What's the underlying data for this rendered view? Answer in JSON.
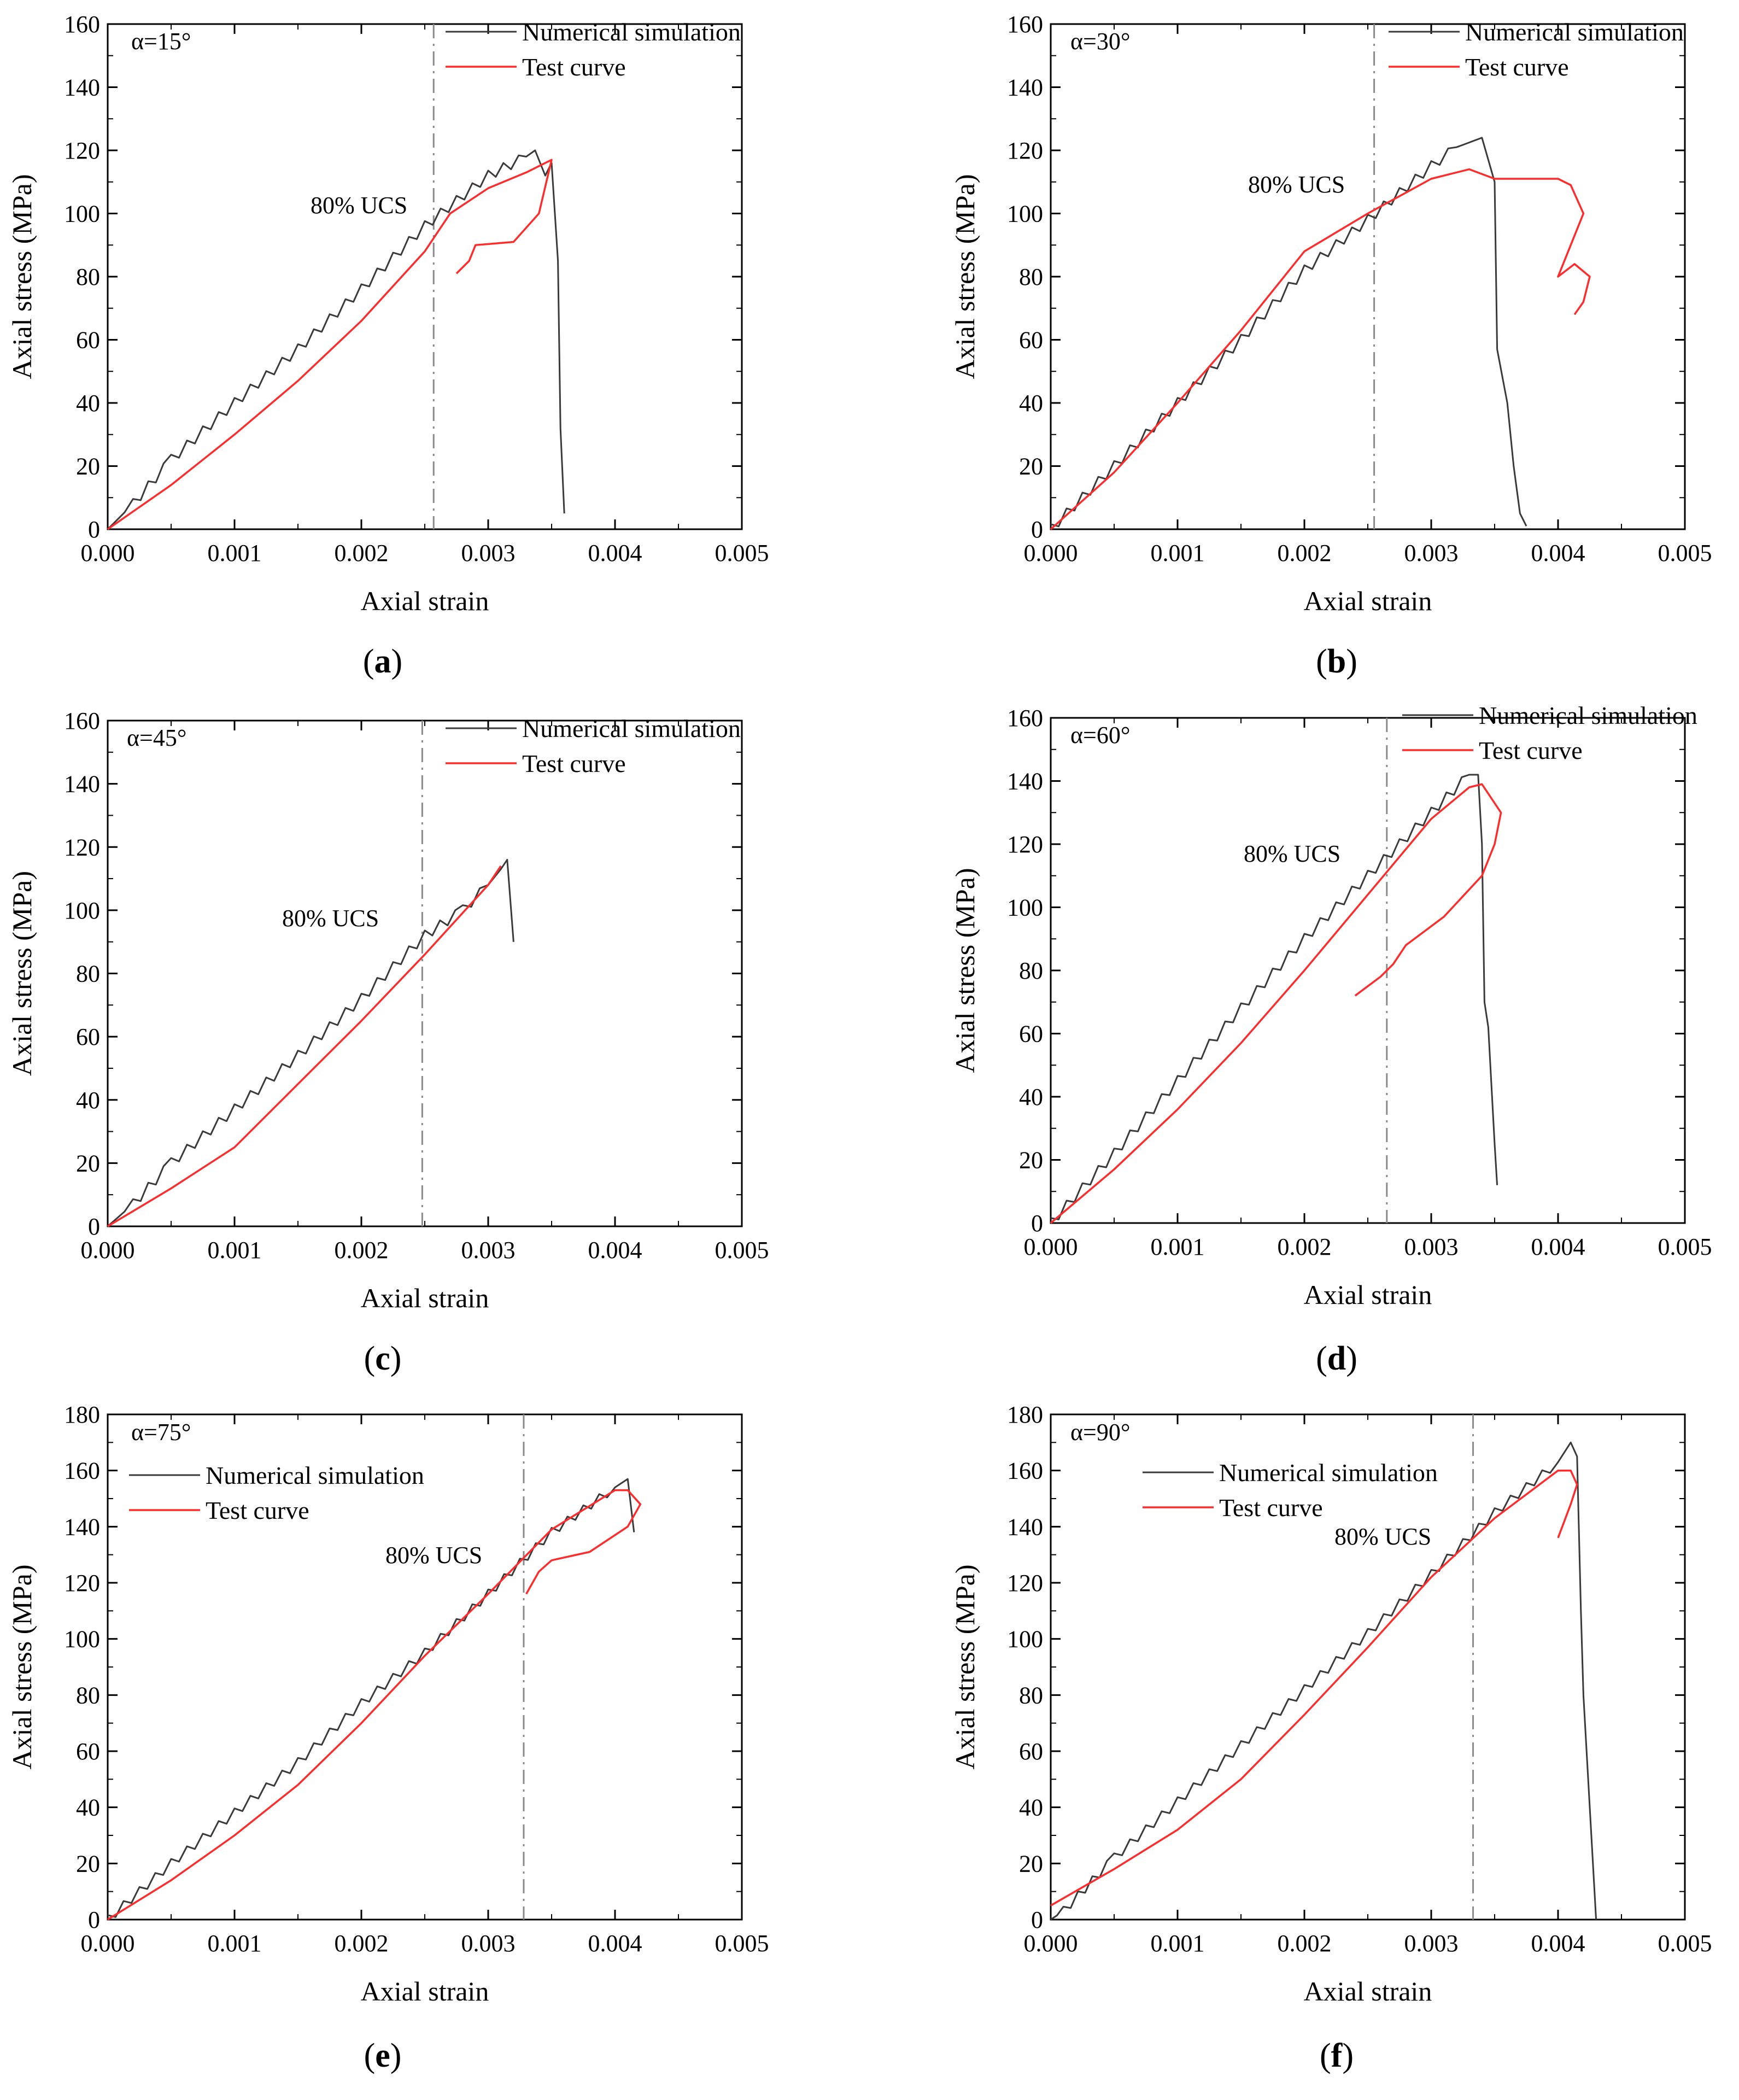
{
  "legend": {
    "simulation": "Numerical simulation",
    "test": "Test curve"
  },
  "colors": {
    "simulation": "#3a3a3a",
    "test": "#ff2a2a",
    "ucs_line": "#8a8a8a",
    "axes": "#000000"
  },
  "ucs_label": "80% UCS",
  "axis_titles": {
    "x": "Axial strain",
    "y": "Axial stress (MPa)"
  },
  "chart_data": [
    {
      "type": "line",
      "panel": "a",
      "angle": "α=15°",
      "xlim": [
        0,
        0.005
      ],
      "ylim": [
        0,
        160
      ],
      "x_ticks": [
        "0.000",
        "0.001",
        "0.002",
        "0.003",
        "0.004",
        "0.005"
      ],
      "y_ticks": [
        "0",
        "20",
        "40",
        "60",
        "80",
        "100",
        "120",
        "140",
        "160"
      ],
      "ucs_strain": 0.00257,
      "series": [
        {
          "name": "Numerical simulation",
          "points": [
            [
              0,
              0
            ],
            [
              0.0002,
              8
            ],
            [
              0.0005,
              22
            ],
            [
              0.001,
              40
            ],
            [
              0.0015,
              57
            ],
            [
              0.002,
              76
            ],
            [
              0.0025,
              96
            ],
            [
              0.003,
              112
            ],
            [
              0.0033,
              118
            ],
            [
              0.00337,
              120
            ],
            [
              0.00345,
              112
            ],
            [
              0.0035,
              116
            ],
            [
              0.00355,
              85
            ],
            [
              0.00357,
              32
            ],
            [
              0.0036,
              5
            ]
          ]
        },
        {
          "name": "Test curve",
          "points": [
            [
              0,
              0
            ],
            [
              0.0005,
              14
            ],
            [
              0.001,
              30
            ],
            [
              0.0015,
              47
            ],
            [
              0.002,
              66
            ],
            [
              0.0025,
              88
            ],
            [
              0.0027,
              100
            ],
            [
              0.003,
              108
            ],
            [
              0.0033,
              113
            ],
            [
              0.0035,
              117
            ],
            [
              0.0034,
              100
            ],
            [
              0.0032,
              91
            ],
            [
              0.0029,
              90
            ],
            [
              0.00285,
              85
            ],
            [
              0.00275,
              81
            ]
          ]
        }
      ]
    },
    {
      "type": "line",
      "panel": "b",
      "angle": "α=30°",
      "xlim": [
        0,
        0.005
      ],
      "ylim": [
        0,
        160
      ],
      "x_ticks": [
        "0.000",
        "0.001",
        "0.002",
        "0.003",
        "0.004",
        "0.005"
      ],
      "y_ticks": [
        "0",
        "20",
        "40",
        "60",
        "80",
        "100",
        "120",
        "140",
        "160"
      ],
      "ucs_strain": 0.00255,
      "series": [
        {
          "name": "Numerical simulation",
          "points": [
            [
              0,
              0
            ],
            [
              0.0005,
              20
            ],
            [
              0.001,
              40
            ],
            [
              0.0015,
              60
            ],
            [
              0.002,
              82
            ],
            [
              0.0025,
              98
            ],
            [
              0.003,
              115
            ],
            [
              0.0032,
              121
            ],
            [
              0.0034,
              124
            ],
            [
              0.0035,
              110
            ],
            [
              0.00352,
              57
            ],
            [
              0.0036,
              40
            ],
            [
              0.00365,
              20
            ],
            [
              0.0037,
              5
            ],
            [
              0.00375,
              1
            ]
          ]
        },
        {
          "name": "Test curve",
          "points": [
            [
              0,
              0
            ],
            [
              0.0005,
              18
            ],
            [
              0.001,
              40
            ],
            [
              0.0015,
              63
            ],
            [
              0.002,
              88
            ],
            [
              0.0025,
              100
            ],
            [
              0.003,
              111
            ],
            [
              0.0033,
              114
            ],
            [
              0.0035,
              111
            ],
            [
              0.004,
              111
            ],
            [
              0.0041,
              109
            ],
            [
              0.0042,
              100
            ],
            [
              0.0041,
              90
            ],
            [
              0.004,
              80
            ],
            [
              0.00413,
              84
            ],
            [
              0.00425,
              80
            ],
            [
              0.0042,
              72
            ],
            [
              0.00413,
              68
            ]
          ]
        }
      ]
    },
    {
      "type": "line",
      "panel": "c",
      "angle": "α=45°",
      "xlim": [
        0,
        0.005
      ],
      "ylim": [
        0,
        160
      ],
      "x_ticks": [
        "0.000",
        "0.001",
        "0.002",
        "0.003",
        "0.004",
        "0.005"
      ],
      "y_ticks": [
        "0",
        "20",
        "40",
        "60",
        "80",
        "100",
        "120",
        "140",
        "160"
      ],
      "ucs_strain": 0.00248,
      "series": [
        {
          "name": "Numerical simulation",
          "points": [
            [
              0,
              0
            ],
            [
              0.0002,
              7
            ],
            [
              0.0005,
              20
            ],
            [
              0.001,
              37
            ],
            [
              0.0015,
              54
            ],
            [
              0.002,
              72
            ],
            [
              0.0025,
              92
            ],
            [
              0.0028,
              100
            ],
            [
              0.003,
              108
            ],
            [
              0.0031,
              113
            ],
            [
              0.00315,
              116
            ],
            [
              0.0032,
              90
            ]
          ]
        },
        {
          "name": "Test curve",
          "points": [
            [
              0,
              0
            ],
            [
              0.0005,
              12
            ],
            [
              0.001,
              25
            ],
            [
              0.0015,
              45
            ],
            [
              0.002,
              65
            ],
            [
              0.0025,
              86
            ],
            [
              0.003,
              108
            ],
            [
              0.0031,
              114
            ]
          ]
        }
      ]
    },
    {
      "type": "line",
      "panel": "d",
      "angle": "α=60°",
      "xlim": [
        0,
        0.005
      ],
      "ylim": [
        0,
        160
      ],
      "x_ticks": [
        "0.000",
        "0.001",
        "0.002",
        "0.003",
        "0.004",
        "0.005"
      ],
      "y_ticks": [
        "0",
        "20",
        "40",
        "60",
        "80",
        "100",
        "120",
        "140",
        "160"
      ],
      "ucs_strain": 0.00265,
      "series": [
        {
          "name": "Numerical simulation",
          "points": [
            [
              0,
              0
            ],
            [
              0.0005,
              22
            ],
            [
              0.001,
              45
            ],
            [
              0.0015,
              68
            ],
            [
              0.002,
              90
            ],
            [
              0.0025,
              110
            ],
            [
              0.003,
              130
            ],
            [
              0.0033,
              142
            ],
            [
              0.00337,
              142
            ],
            [
              0.0034,
              120
            ],
            [
              0.00342,
              70
            ],
            [
              0.00345,
              62
            ],
            [
              0.0035,
              25
            ],
            [
              0.00352,
              12
            ]
          ]
        },
        {
          "name": "Test curve",
          "points": [
            [
              0,
              0
            ],
            [
              0.0005,
              17
            ],
            [
              0.001,
              36
            ],
            [
              0.0015,
              57
            ],
            [
              0.002,
              80
            ],
            [
              0.0025,
              104
            ],
            [
              0.003,
              128
            ],
            [
              0.0033,
              138
            ],
            [
              0.0034,
              139
            ],
            [
              0.00355,
              130
            ],
            [
              0.0035,
              120
            ],
            [
              0.0034,
              110
            ],
            [
              0.0031,
              97
            ],
            [
              0.0029,
              91
            ],
            [
              0.0028,
              88
            ],
            [
              0.0027,
              82
            ],
            [
              0.0026,
              78
            ],
            [
              0.0024,
              72
            ]
          ]
        }
      ]
    },
    {
      "type": "line",
      "panel": "e",
      "angle": "α=75°",
      "xlim": [
        0,
        0.005
      ],
      "ylim": [
        0,
        180
      ],
      "x_ticks": [
        "0.000",
        "0.001",
        "0.002",
        "0.003",
        "0.004",
        "0.005"
      ],
      "y_ticks": [
        "0",
        "20",
        "40",
        "60",
        "80",
        "100",
        "120",
        "140",
        "160",
        "180"
      ],
      "ucs_strain": 0.00328,
      "series": [
        {
          "name": "Numerical simulation",
          "points": [
            [
              0,
              0
            ],
            [
              0.0005,
              20
            ],
            [
              0.001,
              38
            ],
            [
              0.0015,
              56
            ],
            [
              0.002,
              77
            ],
            [
              0.0025,
              95
            ],
            [
              0.003,
              116
            ],
            [
              0.0035,
              138
            ],
            [
              0.004,
              154
            ],
            [
              0.0041,
              157
            ],
            [
              0.00415,
              138
            ]
          ]
        },
        {
          "name": "Test curve",
          "points": [
            [
              0,
              0
            ],
            [
              0.0005,
              14
            ],
            [
              0.001,
              30
            ],
            [
              0.0015,
              48
            ],
            [
              0.002,
              70
            ],
            [
              0.0025,
              94
            ],
            [
              0.003,
              116
            ],
            [
              0.0035,
              139
            ],
            [
              0.004,
              153
            ],
            [
              0.0041,
              153
            ],
            [
              0.0042,
              148
            ],
            [
              0.0041,
              140
            ],
            [
              0.0038,
              131
            ],
            [
              0.0035,
              128
            ],
            [
              0.0034,
              124
            ],
            [
              0.0033,
              116
            ]
          ]
        }
      ]
    },
    {
      "type": "line",
      "panel": "f",
      "angle": "α=90°",
      "xlim": [
        0,
        0.005
      ],
      "ylim": [
        0,
        180
      ],
      "x_ticks": [
        "0.000",
        "0.001",
        "0.002",
        "0.003",
        "0.004",
        "0.005"
      ],
      "y_ticks": [
        "0",
        "20",
        "40",
        "60",
        "80",
        "100",
        "120",
        "140",
        "160",
        "180"
      ],
      "ucs_strain": 0.00333,
      "series": [
        {
          "name": "Numerical simulation",
          "points": [
            [
              0,
              0
            ],
            [
              0.0001,
              3
            ],
            [
              0.0005,
              22
            ],
            [
              0.001,
              42
            ],
            [
              0.0015,
              62
            ],
            [
              0.002,
              82
            ],
            [
              0.0025,
              102
            ],
            [
              0.003,
              123
            ],
            [
              0.0035,
              145
            ],
            [
              0.004,
              163
            ],
            [
              0.0041,
              170
            ],
            [
              0.00415,
              165
            ],
            [
              0.00418,
              110
            ],
            [
              0.0042,
              80
            ],
            [
              0.00425,
              40
            ],
            [
              0.0043,
              0
            ]
          ]
        },
        {
          "name": "Test curve",
          "points": [
            [
              0,
              5
            ],
            [
              0.0005,
              18
            ],
            [
              0.001,
              32
            ],
            [
              0.0015,
              50
            ],
            [
              0.002,
              73
            ],
            [
              0.0025,
              97
            ],
            [
              0.003,
              122
            ],
            [
              0.0035,
              143
            ],
            [
              0.004,
              160
            ],
            [
              0.0041,
              160
            ],
            [
              0.00415,
              155
            ],
            [
              0.0041,
              148
            ],
            [
              0.004,
              136
            ]
          ]
        }
      ]
    }
  ],
  "panel_labels": [
    "a",
    "b",
    "c",
    "d",
    "e",
    "f"
  ]
}
